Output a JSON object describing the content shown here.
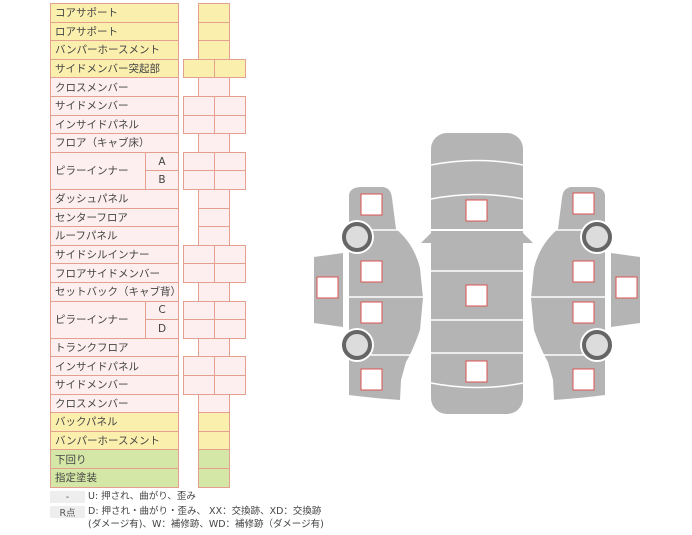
{
  "rows": [
    {
      "label": "コアサポート",
      "color": "yellow",
      "cells": 1
    },
    {
      "label": "ロアサポート",
      "color": "yellow",
      "cells": 1
    },
    {
      "label": "バンパーホースメント",
      "color": "yellow",
      "cells": 1
    },
    {
      "label": "サイドメンバー突起部",
      "color": "yellow",
      "cells": 2
    },
    {
      "label": "クロスメンバー",
      "color": "pink",
      "cells": 1
    },
    {
      "label": "サイドメンバー",
      "color": "pink",
      "cells": 2
    },
    {
      "label": "インサイドパネル",
      "color": "pink",
      "cells": 2
    },
    {
      "label": "フロア（キャブ床）",
      "color": "pink",
      "cells": 1
    },
    {
      "label": "ピラーインナー",
      "sub": "A",
      "color": "pink",
      "cells": 2
    },
    {
      "label": "",
      "sub": "B",
      "color": "pink",
      "cells": 2
    },
    {
      "label": "ダッシュパネル",
      "color": "pink",
      "cells": 1
    },
    {
      "label": "センターフロア",
      "color": "pink",
      "cells": 1
    },
    {
      "label": "ルーフパネル",
      "color": "pink",
      "cells": 1
    },
    {
      "label": "サイドシルインナー",
      "color": "pink",
      "cells": 2
    },
    {
      "label": "フロアサイドメンバー",
      "color": "pink",
      "cells": 2
    },
    {
      "label": "セットバック（キャブ背）",
      "color": "pink",
      "cells": 1
    },
    {
      "label": "ピラーインナー",
      "sub": "C",
      "color": "pink",
      "cells": 2
    },
    {
      "label": "",
      "sub": "D",
      "color": "pink",
      "cells": 2
    },
    {
      "label": "トランクフロア",
      "color": "pink",
      "cells": 1
    },
    {
      "label": "インサイドパネル",
      "color": "pink",
      "cells": 2
    },
    {
      "label": "サイドメンバー",
      "color": "pink",
      "cells": 2
    },
    {
      "label": "クロスメンバー",
      "color": "pink",
      "cells": 1
    },
    {
      "label": "バックパネル",
      "color": "yellow",
      "cells": 1
    },
    {
      "label": "バンパーホースメント",
      "color": "yellow",
      "cells": 1
    },
    {
      "label": "下回り",
      "color": "green",
      "cells": 1
    },
    {
      "label": "指定塗装",
      "color": "green",
      "cells": 1
    }
  ],
  "legend": [
    {
      "key": "-",
      "text": "U: 押され、曲がり、歪み"
    },
    {
      "key": "R点",
      "text": "D: 押され・曲がり・歪み、 XX：交換跡、XD：交換跡",
      "text2": "(ダメージ有)、W：補修跡、WD：補修跡（ダメージ有)"
    }
  ],
  "colors": {
    "yellow": "#fbefae",
    "pink": "#fdeef0",
    "green": "#d5e7a6",
    "border": "#e3a08e",
    "body": "#b4b4b4",
    "marker": "#d9534f"
  },
  "diagram": {
    "icons": [
      "car-body-top-view",
      "wheel-icon",
      "inspection-marker"
    ]
  }
}
